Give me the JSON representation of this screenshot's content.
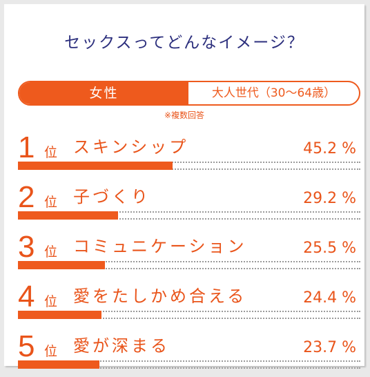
{
  "title": "セックスってどんなイメージ？",
  "segment": {
    "gender": "女性",
    "age_group": "大人世代（30〜64歳）"
  },
  "note": "※複数回答",
  "colors": {
    "accent": "#ee5a1d",
    "title": "#2c2f7d",
    "dots": "#9a9a9a"
  },
  "chart_data": {
    "type": "bar",
    "orientation": "horizontal",
    "title": "セックスってどんなイメージ？",
    "rank_unit": "位",
    "value_suffix": " %",
    "xlim": [
      0,
      100
    ],
    "categories": [
      "スキンシップ",
      "子づくり",
      "コミュニケーション",
      "愛をたしかめ合える",
      "愛が深まる"
    ],
    "ranks": [
      "1",
      "2",
      "3",
      "4",
      "5"
    ],
    "values": [
      45.2,
      29.2,
      25.5,
      24.4,
      23.7
    ],
    "value_labels": [
      "45.2 %",
      "29.2 %",
      "25.5 %",
      "24.4 %",
      "23.7 %"
    ]
  }
}
